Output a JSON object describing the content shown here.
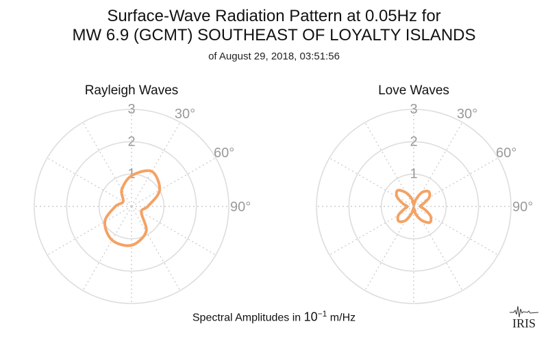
{
  "header": {
    "title_line1": "Surface-Wave Radiation Pattern at 0.05Hz for",
    "title_line2": "MW 6.9 (GCMT) SOUTHEAST OF LOYALTY ISLANDS",
    "subtitle": "of August 29, 2018, 03:51:56"
  },
  "footer": {
    "label_prefix": "Spectral Amplitudes in ",
    "label_base": "10",
    "label_exp": "−1",
    "label_suffix": " m/Hz"
  },
  "logo": {
    "text": "IRIS"
  },
  "colors": {
    "curve": "#f4a264",
    "grid": "#dddddd",
    "grid_dotted": "#cccccc",
    "tick": "#999999"
  },
  "chart_data": [
    {
      "type": "polar-line",
      "title": "Rayleigh Waves",
      "radial_ticks": [
        "1",
        "2",
        "3"
      ],
      "rmax": 3,
      "angle_ticks": [
        "30°",
        "60°",
        "90°"
      ],
      "azimuth_deg": [
        0,
        30,
        60,
        90,
        120,
        150,
        180,
        210,
        240,
        270,
        300,
        330
      ],
      "r": [
        0.95,
        1.25,
        1.0,
        0.5,
        0.35,
        0.9,
        1.2,
        1.2,
        0.95,
        0.5,
        0.3,
        0.6
      ]
    },
    {
      "type": "polar-line",
      "title": "Love Waves",
      "radial_ticks": [
        "1",
        "2",
        "3"
      ],
      "rmax": 3,
      "angle_ticks": [
        "30°",
        "60°",
        "90°"
      ],
      "azimuth_deg": [
        0,
        15,
        30,
        45,
        60,
        75,
        90,
        105,
        120,
        135,
        150,
        165,
        180,
        195,
        210,
        225,
        240,
        255,
        270,
        285,
        300,
        315,
        330,
        345
      ],
      "r": [
        0.05,
        0.2,
        0.5,
        0.65,
        0.55,
        0.3,
        0.2,
        0.35,
        0.6,
        0.7,
        0.5,
        0.25,
        0.05,
        0.2,
        0.5,
        0.65,
        0.55,
        0.3,
        0.2,
        0.35,
        0.6,
        0.7,
        0.5,
        0.25
      ]
    }
  ]
}
